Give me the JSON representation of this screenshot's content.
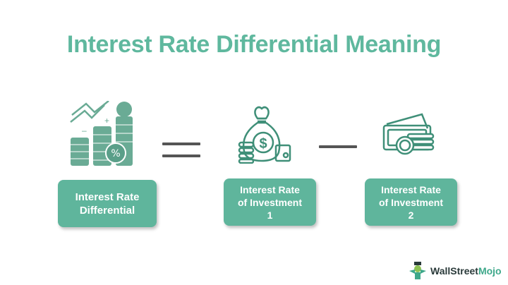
{
  "title": "Interest Rate Differential Meaning",
  "colors": {
    "accent": "#5fb59c",
    "title": "#5fb89e",
    "operator": "#555555"
  },
  "terms": [
    {
      "icon": "growth-chart-coins-percent-icon",
      "lines": [
        "Interest Rate",
        "Differential"
      ]
    },
    {
      "icon": "money-bag-coins-icon",
      "lines": [
        "Interest Rate",
        "of Investment",
        "1"
      ]
    },
    {
      "icon": "cash-coins-icon",
      "lines": [
        "Interest Rate",
        "of Investment",
        "2"
      ]
    }
  ],
  "operators": [
    "equals",
    "minus"
  ],
  "logo": {
    "part1": "WallStreet",
    "part2": "Mojo"
  }
}
